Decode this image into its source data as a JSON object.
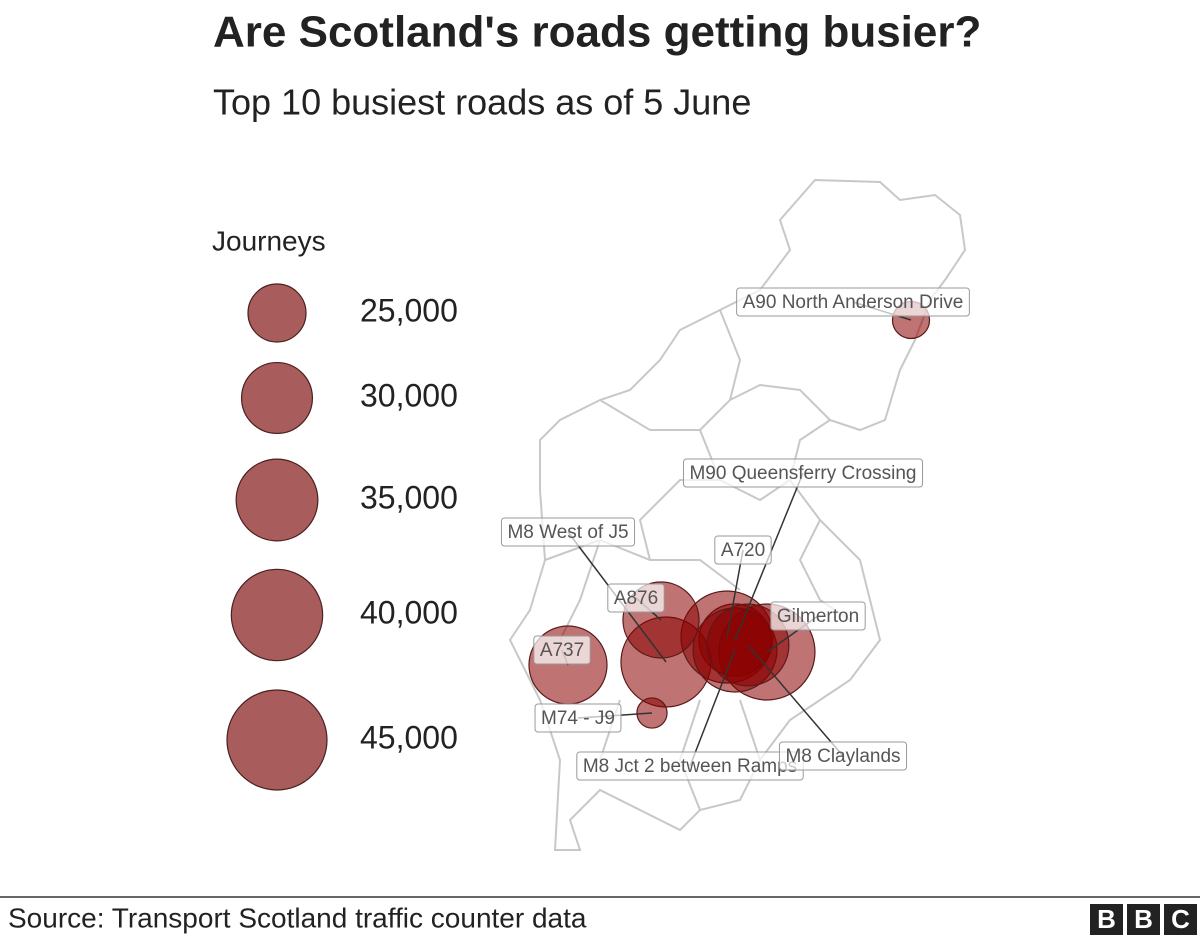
{
  "chart_data": {
    "type": "bubble_map",
    "title": "Are Scotland's roads getting busier?",
    "subtitle": "Top 10 busiest roads as of 5 June",
    "size_legend_title": "Journeys",
    "size_ticks": [
      {
        "value": 25000,
        "label": "25,000"
      },
      {
        "value": 30000,
        "label": "30,000"
      },
      {
        "value": 35000,
        "label": "35,000"
      },
      {
        "value": 40000,
        "label": "40,000"
      },
      {
        "value": 45000,
        "label": "45,000"
      }
    ],
    "categories": [
      "A90 North Anderson Drive",
      "M90 Queensferry Crossing",
      "M8 West of J5",
      "A720",
      "A876",
      "Gilmerton",
      "A737",
      "M74 - J9",
      "M8 Jct 2 between Ramps",
      "M8 Claylands"
    ],
    "values": [
      19000,
      30500,
      39300,
      40400,
      32300,
      42600,
      33200,
      17600,
      36100,
      35000
    ],
    "color": "#8b0000",
    "legend_color": "#a85c5c",
    "source": "Source: Transport Scotland traffic counter data"
  },
  "logo": [
    "B",
    "B",
    "C"
  ]
}
